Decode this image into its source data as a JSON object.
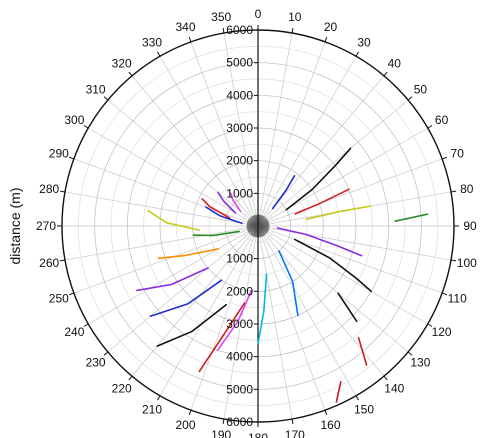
{
  "chart_data": {
    "type": "polar-line",
    "ylabel": "distance (m)",
    "r_range": [
      0,
      6000
    ],
    "r_ticks": [
      "1000",
      "2000",
      "3000",
      "4000",
      "5000",
      "6000"
    ],
    "angle_ticks": [
      "0",
      "10",
      "20",
      "30",
      "40",
      "50",
      "60",
      "70",
      "80",
      "90",
      "100",
      "110",
      "120",
      "130",
      "140",
      "150",
      "160",
      "170",
      "180",
      "190",
      "200",
      "210",
      "220",
      "230",
      "240",
      "250",
      "260",
      "270",
      "280",
      "290",
      "300",
      "310",
      "320",
      "330",
      "340",
      "350"
    ],
    "angle_direction": "clockwise",
    "zero_location": "top",
    "grid": true,
    "series": [
      {
        "color": "#111111",
        "points": [
          [
            60,
            1000
          ],
          [
            56,
            2000
          ],
          [
            52,
            3000
          ],
          [
            50,
            3700
          ]
        ]
      },
      {
        "color": "#d62020",
        "points": [
          [
            72,
            1200
          ],
          [
            70,
            2000
          ],
          [
            68,
            3000
          ]
        ]
      },
      {
        "color": "#c8c81e",
        "points": [
          [
            82,
            1500
          ],
          [
            80,
            2500
          ],
          [
            80,
            3500
          ]
        ]
      },
      {
        "color": "#2e8b2e",
        "points": [
          [
            88,
            4200
          ],
          [
            86,
            5200
          ]
        ]
      },
      {
        "color": "#1f2fd0",
        "points": [
          [
            40,
            700
          ],
          [
            38,
            1400
          ],
          [
            36,
            1900
          ]
        ]
      },
      {
        "color": "#8a2be2",
        "points": [
          [
            96,
            600
          ],
          [
            100,
            1500
          ],
          [
            104,
            2500
          ],
          [
            106,
            3300
          ]
        ]
      },
      {
        "color": "#111111",
        "points": [
          [
            110,
            1200
          ],
          [
            114,
            2400
          ],
          [
            118,
            3400
          ],
          [
            120,
            4000
          ]
        ]
      },
      {
        "color": "#111111",
        "points": [
          [
            130,
            3200
          ],
          [
            134,
            4200
          ]
        ]
      },
      {
        "color": "#c81e1e",
        "points": [
          [
            138,
            4600
          ],
          [
            142,
            5400
          ]
        ]
      },
      {
        "color": "#c81e1e",
        "points": [
          [
            152,
            5400
          ],
          [
            156,
            5900
          ]
        ]
      },
      {
        "color": "#0077ff",
        "points": [
          [
            140,
            1000
          ],
          [
            148,
            2000
          ],
          [
            156,
            3000
          ]
        ]
      },
      {
        "color": "#00bcd4",
        "points": [
          [
            170,
            1500
          ],
          [
            176,
            2600
          ],
          [
            180,
            3600
          ]
        ]
      },
      {
        "color": "#e040fb",
        "points": [
          [
            186,
            2000
          ],
          [
            192,
            3000
          ],
          [
            198,
            4000
          ]
        ]
      },
      {
        "color": "#111111",
        "points": [
          [
            202,
            2600
          ],
          [
            212,
            3800
          ],
          [
            220,
            4800
          ]
        ]
      },
      {
        "color": "#1f2fd0",
        "points": [
          [
            214,
            2000
          ],
          [
            222,
            3200
          ],
          [
            230,
            4300
          ]
        ]
      },
      {
        "color": "#c81e1e",
        "points": [
          [
            190,
            2400
          ],
          [
            198,
            3600
          ],
          [
            202,
            4800
          ]
        ]
      },
      {
        "color": "#8a2be2",
        "points": [
          [
            230,
            2000
          ],
          [
            236,
            3200
          ],
          [
            242,
            4200
          ]
        ]
      },
      {
        "color": "#ff8c00",
        "points": [
          [
            240,
            1400
          ],
          [
            248,
            2400
          ],
          [
            252,
            3200
          ]
        ]
      },
      {
        "color": "#228b22",
        "points": [
          [
            254,
            600
          ],
          [
            258,
            1400
          ],
          [
            262,
            2000
          ]
        ]
      },
      {
        "color": "#c8c81e",
        "points": [
          [
            266,
            1800
          ],
          [
            272,
            2800
          ],
          [
            278,
            3400
          ]
        ]
      },
      {
        "color": "#d62020",
        "points": [
          [
            286,
            900
          ],
          [
            292,
            1600
          ],
          [
            296,
            1900
          ]
        ]
      },
      {
        "color": "#8a2be2",
        "points": [
          [
            300,
            800
          ],
          [
            306,
            1300
          ],
          [
            310,
            1600
          ]
        ]
      },
      {
        "color": "#1f2fd0",
        "points": [
          [
            280,
            500
          ],
          [
            285,
            1200
          ],
          [
            290,
            1700
          ]
        ]
      },
      {
        "color": "#e040fb",
        "points": [
          [
            310,
            700
          ],
          [
            316,
            1100
          ],
          [
            320,
            1300
          ]
        ]
      }
    ]
  }
}
